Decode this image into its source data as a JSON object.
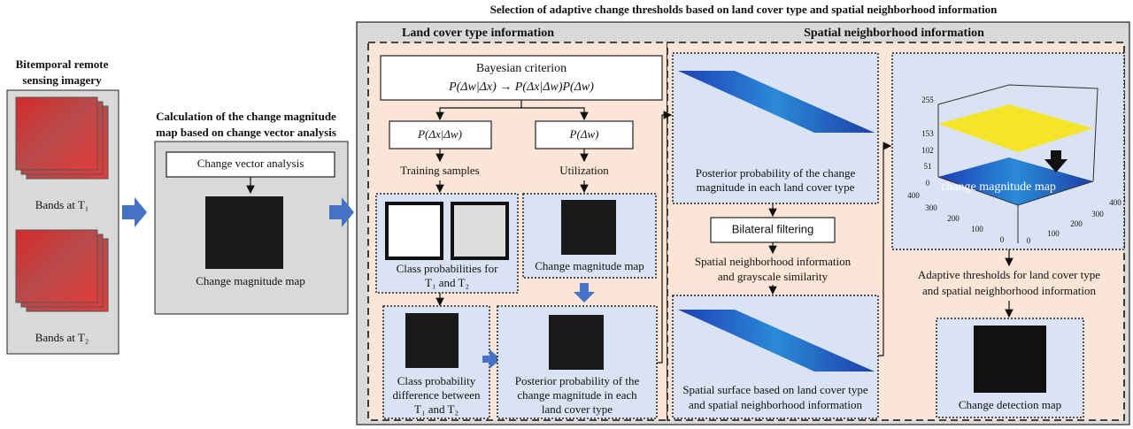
{
  "title": "Selection of adaptive change thresholds based on land cover type and spatial neighborhood information",
  "input": {
    "title": [
      "Bitemporal remote",
      "sensing imagery"
    ],
    "band1": "Bands at T₁",
    "band2": "Bands at T₂"
  },
  "cva": {
    "title": [
      "Calculation of the change magnitude",
      "map based on change vector analysis"
    ],
    "method": "Change vector analysis",
    "output": "Change magnitude map"
  },
  "land_cover": {
    "header": "Land cover type information",
    "criterion": "Bayesian criterion",
    "formula": "P(Δw|Δx) → P(Δx|Δw)P(Δw)",
    "likelihood": "P(Δx|Δw)",
    "prior": "P(Δw)",
    "training": "Training samples",
    "utilization": "Utilization",
    "class_prob": [
      "Class probabilities for",
      "T₁ and T₂"
    ],
    "magnitude": "Change magnitude map",
    "difference": [
      "Class probability",
      "difference between",
      "T₁ and T₂"
    ],
    "posterior": [
      "Posterior probability of the",
      "change magnitude in each",
      "land cover type"
    ]
  },
  "spatial": {
    "header": "Spatial neighborhood information",
    "posterior": [
      "Posterior probability of the change",
      "magnitude in each land cover type"
    ],
    "filter": "Bilateral filtering",
    "similarity": [
      "Spatial neighborhood information",
      "and grayscale similarity"
    ],
    "surface": [
      "Spatial surface based on land cover type",
      "and spatial neighborhood information"
    ],
    "plot": {
      "z_ticks": [
        "255",
        "153",
        "102",
        "51",
        "0"
      ],
      "x_ticks": [
        "400",
        "300",
        "200",
        "100",
        "0"
      ],
      "y_ticks": [
        "400",
        "300",
        "200",
        "100",
        "0"
      ],
      "label": "change magnitude map"
    },
    "thresholds": [
      "Adaptive thresholds for land cover type",
      "and spatial neighborhood information"
    ],
    "result": "Change detection map"
  }
}
